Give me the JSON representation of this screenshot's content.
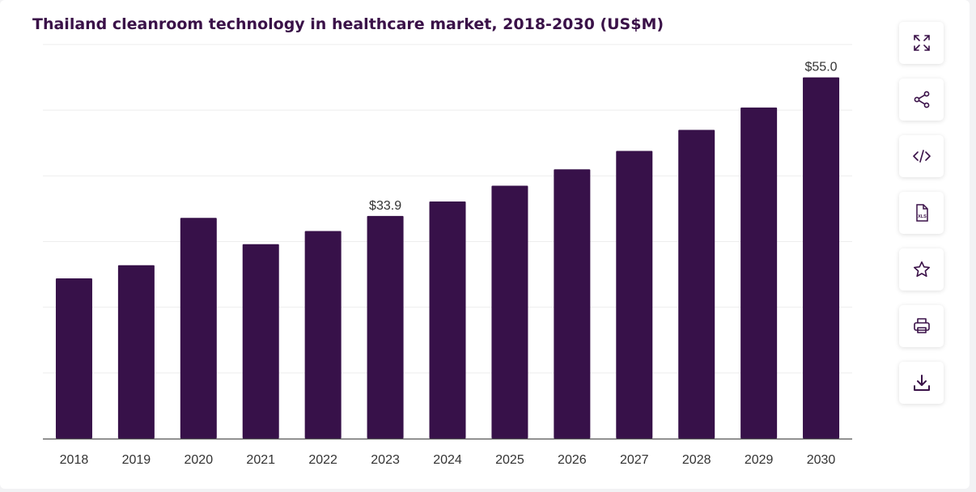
{
  "title": "Thailand cleanroom technology in healthcare market, 2018-2030 (US$M)",
  "colors": {
    "bar": "#371149",
    "title": "#3a1148",
    "axis": "#555555",
    "grid": "#eeeeee",
    "label": "#333333"
  },
  "toolbar": [
    {
      "name": "expand-button",
      "icon": "expand-icon"
    },
    {
      "name": "share-button",
      "icon": "share-icon"
    },
    {
      "name": "embed-button",
      "icon": "code-icon"
    },
    {
      "name": "xls-button",
      "icon": "xls-file-icon",
      "text": "XLS"
    },
    {
      "name": "favorite-button",
      "icon": "star-icon"
    },
    {
      "name": "print-button",
      "icon": "printer-icon"
    },
    {
      "name": "download-button",
      "icon": "download-icon"
    }
  ],
  "chart_data": {
    "type": "bar",
    "title": "Thailand cleanroom technology in healthcare market, 2018-2030 (US$M)",
    "categories": [
      "2018",
      "2019",
      "2020",
      "2021",
      "2022",
      "2023",
      "2024",
      "2025",
      "2026",
      "2027",
      "2028",
      "2029",
      "2030"
    ],
    "values": [
      24.4,
      26.4,
      33.6,
      29.6,
      31.6,
      33.9,
      36.1,
      38.5,
      41.0,
      43.8,
      47.0,
      50.4,
      55.0
    ],
    "data_labels": [
      {
        "index": 5,
        "text": "$33.9"
      },
      {
        "index": 12,
        "text": "$55.0"
      }
    ],
    "ylim": [
      0,
      60
    ],
    "grid": true,
    "legend": "none",
    "xlabel": "",
    "ylabel": ""
  }
}
